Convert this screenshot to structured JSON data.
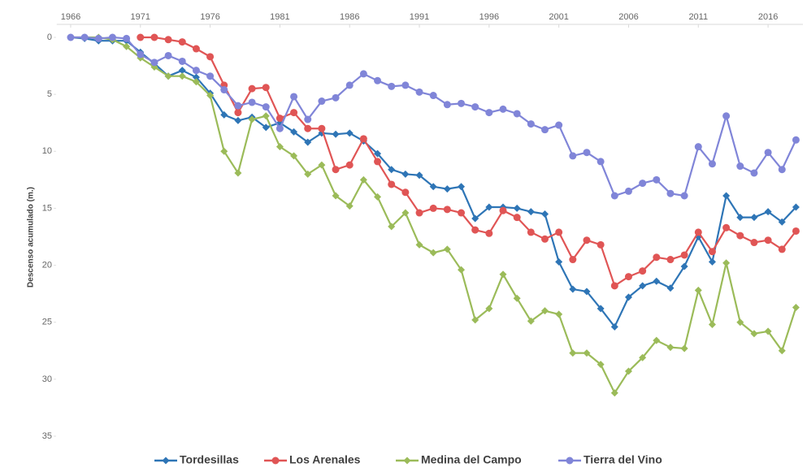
{
  "chart_data": {
    "type": "line",
    "y_label": "Descenso acumulado (m.)",
    "x": [
      1966,
      1967,
      1968,
      1969,
      1970,
      1971,
      1972,
      1973,
      1974,
      1975,
      1976,
      1977,
      1978,
      1979,
      1980,
      1981,
      1982,
      1983,
      1984,
      1985,
      1986,
      1987,
      1988,
      1989,
      1990,
      1991,
      1992,
      1993,
      1994,
      1995,
      1996,
      1997,
      1998,
      1999,
      2000,
      2001,
      2002,
      2003,
      2004,
      2005,
      2006,
      2007,
      2008,
      2009,
      2010,
      2011,
      2012,
      2013,
      2014,
      2015,
      2016,
      2017,
      2018
    ],
    "xlim": [
      1965,
      2018.5
    ],
    "xticks": [
      1966,
      1971,
      1976,
      1981,
      1986,
      1991,
      1996,
      2001,
      2006,
      2011,
      2016
    ],
    "ylim": [
      0,
      35
    ],
    "yticks": [
      0,
      5,
      10,
      15,
      20,
      25,
      30,
      35
    ],
    "y_inverted": true,
    "x_axis_position": "top",
    "legend": "bottom",
    "series": [
      {
        "name": "Tordesillas",
        "color": "#2e75b6",
        "marker": "diamond",
        "values": [
          0,
          0.1,
          0.3,
          0.3,
          0.3,
          1.3,
          2.3,
          3.4,
          2.9,
          3.5,
          4.9,
          6.8,
          7.3,
          7.0,
          7.9,
          7.5,
          8.3,
          9.2,
          8.4,
          8.5,
          8.4,
          9.1,
          10.2,
          11.6,
          12.0,
          12.1,
          13.1,
          13.3,
          13.1,
          15.9,
          14.9,
          14.9,
          15.0,
          15.3,
          15.5,
          19.7,
          22.1,
          22.3,
          23.8,
          25.4,
          22.8,
          21.8,
          21.4,
          22.0,
          20.1,
          17.5,
          19.7,
          13.9,
          15.8,
          15.8,
          15.3,
          16.2,
          14.9
        ]
      },
      {
        "name": "Los Arenales",
        "color": "#e05555",
        "marker": "circle",
        "values": [
          null,
          null,
          null,
          null,
          null,
          0,
          0,
          0.2,
          0.4,
          1.0,
          1.7,
          4.2,
          6.6,
          4.5,
          4.4,
          7.1,
          6.6,
          8.0,
          8.0,
          11.6,
          11.2,
          8.9,
          10.9,
          12.9,
          13.6,
          15.4,
          15.0,
          15.1,
          15.4,
          16.9,
          17.2,
          15.2,
          15.8,
          17.1,
          17.7,
          17.1,
          19.5,
          17.8,
          18.2,
          21.8,
          21.0,
          20.5,
          19.3,
          19.5,
          19.1,
          17.1,
          18.8,
          16.7,
          17.4,
          18.0,
          17.8,
          18.6,
          17.0
        ]
      },
      {
        "name": "Medina del Campo",
        "color": "#9bbb59",
        "marker": "diamond",
        "values": [
          0,
          0,
          0,
          0.2,
          0.8,
          1.8,
          2.6,
          3.4,
          3.4,
          3.9,
          5.1,
          10.0,
          11.9,
          7.2,
          6.9,
          9.6,
          10.4,
          12.0,
          11.2,
          13.9,
          14.8,
          12.5,
          14.0,
          16.6,
          15.4,
          18.2,
          18.9,
          18.6,
          20.4,
          24.8,
          23.8,
          20.8,
          22.9,
          24.9,
          24.0,
          24.3,
          27.7,
          27.7,
          28.7,
          31.2,
          29.3,
          28.1,
          26.6,
          27.2,
          27.3,
          22.2,
          25.2,
          19.8,
          25.0,
          26.0,
          25.8,
          27.5,
          23.7
        ]
      },
      {
        "name": "Tierra del Vino",
        "color": "#8085d8",
        "marker": "circle",
        "values": [
          0,
          0,
          0.1,
          0,
          0.1,
          1.5,
          2.2,
          1.6,
          2.1,
          2.9,
          3.4,
          4.6,
          6.0,
          5.7,
          6.1,
          8.0,
          5.2,
          7.2,
          5.6,
          5.3,
          4.2,
          3.2,
          3.8,
          4.3,
          4.2,
          4.8,
          5.1,
          5.9,
          5.8,
          6.1,
          6.6,
          6.3,
          6.7,
          7.6,
          8.1,
          7.7,
          10.4,
          10.1,
          10.9,
          13.9,
          13.5,
          12.8,
          12.5,
          13.7,
          13.9,
          9.6,
          11.1,
          6.9,
          11.3,
          11.9,
          10.1,
          11.6,
          9.0
        ]
      }
    ]
  }
}
